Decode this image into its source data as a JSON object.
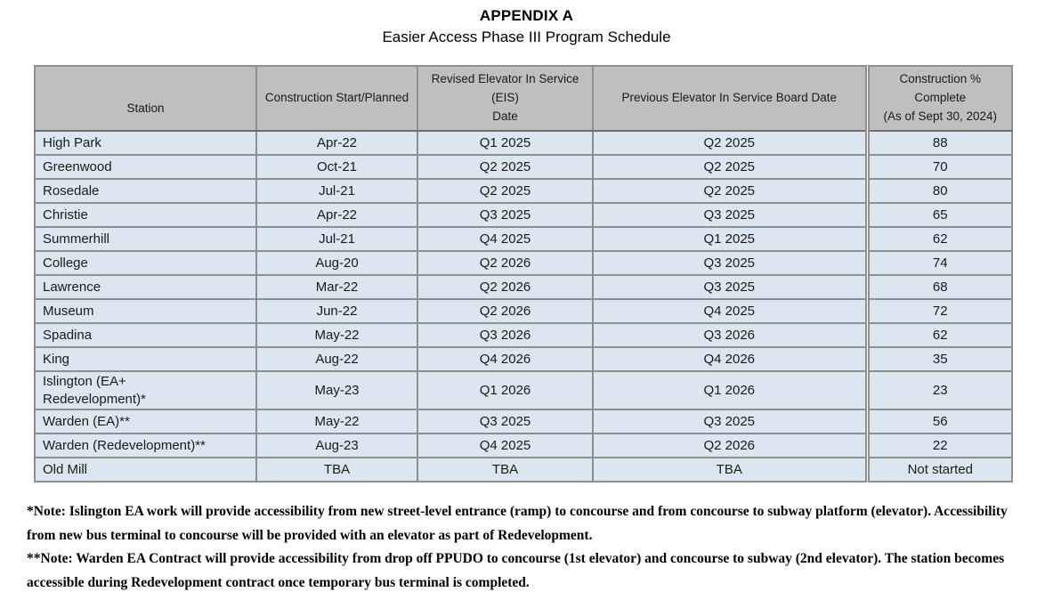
{
  "title": "APPENDIX A",
  "subtitle": "Easier Access Phase III Program Schedule",
  "table": {
    "columns": [
      "Station",
      "Construction Start/Planned",
      "Revised Elevator In Service (EIS)\nDate",
      "Previous Elevator In Service Board Date",
      "Construction % Complete\n(As of Sept 30, 2024)"
    ],
    "rows": [
      [
        "High Park",
        "Apr-22",
        "Q1 2025",
        "Q2 2025",
        "88"
      ],
      [
        "Greenwood",
        "Oct-21",
        "Q2 2025",
        "Q2 2025",
        "70"
      ],
      [
        "Rosedale",
        "Jul-21",
        "Q2 2025",
        "Q2 2025",
        "80"
      ],
      [
        "Christie",
        "Apr-22",
        "Q3 2025",
        "Q3 2025",
        "65"
      ],
      [
        "Summerhill",
        "Jul-21",
        "Q4 2025",
        "Q1 2025",
        "62"
      ],
      [
        "College",
        "Aug-20",
        "Q2 2026",
        "Q3 2025",
        "74"
      ],
      [
        "Lawrence",
        "Mar-22",
        "Q2 2026",
        "Q3 2025",
        "68"
      ],
      [
        "Museum",
        "Jun-22",
        "Q2 2026",
        "Q4 2025",
        "72"
      ],
      [
        "Spadina",
        "May-22",
        "Q3 2026",
        "Q3 2026",
        "62"
      ],
      [
        "King",
        "Aug-22",
        "Q4 2026",
        "Q4 2026",
        "35"
      ],
      [
        "Islington (EA+\nRedevelopment)*",
        "May-23",
        "Q1 2026",
        "Q1 2026",
        "23"
      ],
      [
        "Warden (EA)**",
        "May-22",
        "Q3 2025",
        "Q3 2025",
        "56"
      ],
      [
        "Warden (Redevelopment)**",
        "Aug-23",
        "Q4 2025",
        "Q2 2026",
        "22"
      ],
      [
        "Old Mill",
        "TBA",
        "TBA",
        "TBA",
        "Not started"
      ]
    ]
  },
  "notes": [
    "*Note: Islington EA work will provide accessibility from new street-level entrance (ramp) to concourse and from concourse to subway platform (elevator). Accessibility from new bus terminal to concourse will be provided with an elevator as part of Redevelopment.",
    "**Note: Warden EA Contract will provide accessibility from drop off PPUDO to concourse (1st elevator) and concourse to subway (2nd elevator). The station becomes accessible during Redevelopment contract once temporary bus terminal is completed."
  ],
  "colors": {
    "header_bg": "#bfbfbf",
    "row_bg": "#dce6f1",
    "border": "#8f8f8f",
    "border_dark": "#6f6f6f",
    "text": "#1a1a1a"
  }
}
